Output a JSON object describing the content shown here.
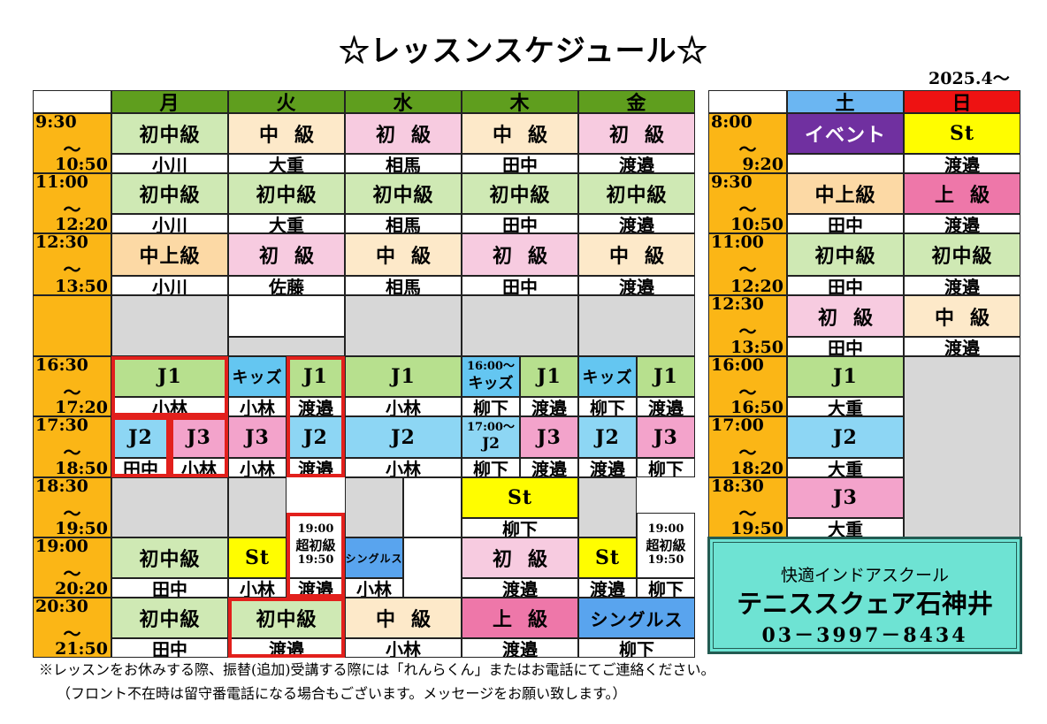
{
  "title": "☆レッスンスケジュール☆",
  "date": "2025.4～",
  "colors": {
    "time": "#fbb616",
    "weekday_header": "#5f9e1e",
    "sat_header": "#6bb6f2",
    "sun_header": "#ee1212",
    "beginner_mid": "#cfe9b4",
    "mid": "#fde9c9",
    "beginner": "#f7cbe0",
    "mid_upper": "#fcd9a5",
    "upper": "#ee77a9",
    "junior1": "#b7e08e",
    "kids": "#64c6f1",
    "junior2": "#8dd6f4",
    "junior3": "#f3a3cb",
    "st": "#fffd00",
    "singles": "#59a4ee",
    "event": "#7030a0",
    "gray": "#d7d7d7",
    "red_frame": "#e2201c",
    "contact_box": "#6ee3d3"
  },
  "days": [
    "月",
    "火",
    "水",
    "木",
    "金",
    "土",
    "日"
  ],
  "times": [
    {
      "start": "9:30",
      "tilde": "～",
      "end": "10:50"
    },
    {
      "start": "11:00",
      "tilde": "～",
      "end": "12:20"
    },
    {
      "start": "12:30",
      "tilde": "～",
      "end": "13:50"
    },
    {
      "start": "",
      "tilde": "",
      "end": ""
    },
    {
      "start": "16:30",
      "tilde": "～",
      "end": "17:20"
    },
    {
      "start": "17:30",
      "tilde": "～",
      "end": "18:50"
    },
    {
      "start": "18:30",
      "tilde": "～",
      "end": "19:50"
    },
    {
      "start": "19:00",
      "tilde": "～",
      "end": "20:20"
    },
    {
      "start": "20:30",
      "tilde": "～",
      "end": "21:50"
    }
  ],
  "weekend_times": [
    {
      "start": "8:00",
      "tilde": "～",
      "end": "9:20"
    },
    {
      "start": "9:30",
      "tilde": "～",
      "end": "10:50"
    },
    {
      "start": "11:00",
      "tilde": "～",
      "end": "12:20"
    },
    {
      "start": "12:30",
      "tilde": "～",
      "end": "13:50"
    },
    {
      "start": "16:00",
      "tilde": "～",
      "end": "16:50"
    },
    {
      "start": "17:00",
      "tilde": "～",
      "end": "18:20"
    },
    {
      "start": "18:30",
      "tilde": "～",
      "end": "19:50"
    }
  ],
  "weekday": [
    [
      {
        "lv": "初中級",
        "c": "beginner_mid",
        "n": "小川"
      },
      {
        "lv": "中級",
        "c": "mid",
        "n": "大重",
        "sp": 1
      },
      {
        "lv": "初級",
        "c": "beginner",
        "n": "相馬",
        "sp": 1
      },
      {
        "lv": "中級",
        "c": "mid",
        "n": "田中",
        "sp": 1
      },
      {
        "lv": "初級",
        "c": "beginner",
        "n": "渡邉",
        "sp": 1
      }
    ],
    [
      {
        "lv": "初中級",
        "c": "beginner_mid",
        "n": "小川"
      },
      {
        "lv": "初中級",
        "c": "beginner_mid",
        "n": "大重"
      },
      {
        "lv": "初中級",
        "c": "beginner_mid",
        "n": "相馬"
      },
      {
        "lv": "初中級",
        "c": "beginner_mid",
        "n": "田中"
      },
      {
        "lv": "初中級",
        "c": "beginner_mid",
        "n": "渡邉"
      }
    ],
    [
      {
        "lv": "中上級",
        "c": "mid_upper",
        "n": "小川"
      },
      {
        "lv": "初級",
        "c": "beginner",
        "n": "佐藤",
        "sp": 1
      },
      {
        "lv": "中級",
        "c": "mid",
        "n": "相馬",
        "sp": 1
      },
      {
        "lv": "初級",
        "c": "beginner",
        "n": "田中",
        "sp": 1
      },
      {
        "lv": "中級",
        "c": "mid",
        "n": "渡邉",
        "sp": 1
      }
    ]
  ],
  "junior": {
    "mon_j1": "J1",
    "mon_j1_n": "小林",
    "tue_kids": "キッズ",
    "tue_kids_n": "小林",
    "tue_j1": "J1",
    "tue_j1_n": "渡邉",
    "wed_j1": "J1",
    "wed_j1_n": "小林",
    "thu_kids_time": "16:00～",
    "thu_kids": "キッズ",
    "thu_kids_n": "柳下",
    "thu_j1": "J1",
    "thu_j1_n": "渡邉",
    "fri_kids": "キッズ",
    "fri_kids_n": "柳下",
    "fri_j1": "J1",
    "fri_j1_n": "渡邉",
    "mon_j2": "J2",
    "mon_j2_n": "田中",
    "mon_j3": "J3",
    "mon_j3_n": "小林",
    "tue_j3": "J3",
    "tue_j3_n": "小林",
    "tue_j2": "J2",
    "tue_j2_n": "渡邉",
    "wed_j2": "J2",
    "wed_j2_n": "小林",
    "thu_j2_time": "17:00～",
    "thu_j2": "J2",
    "thu_j2_n": "柳下",
    "thu_j3": "J3",
    "thu_j3_n": "渡邉",
    "fri_j2": "J2",
    "fri_j2_n": "渡邉",
    "fri_j3": "J3",
    "fri_j3_n": "柳下",
    "thu_st": "St",
    "thu_st_n": "柳下"
  },
  "evening": {
    "mon_1900": "初中級",
    "mon_1900_n": "田中",
    "tue_st": "St",
    "tue_st_n": "小林",
    "tue_special": [
      "19:00",
      "超初級",
      "19:50"
    ],
    "tue_special_n": "渡邉",
    "wed_singles": "シングルス",
    "wed_singles_n": "小林",
    "thu_1900": "初級",
    "thu_1900_n": "渡邉",
    "fri_st": "St",
    "fri_st_n": "渡邉",
    "fri_special": [
      "19:00",
      "超初級",
      "19:50"
    ],
    "fri_special_n": "柳下",
    "mon_2030": "初中級",
    "mon_2030_n": "田中",
    "tue_2030": "初中級",
    "tue_2030_n": "渡邉",
    "wed_2030": "中級",
    "wed_2030_n": "小林",
    "thu_2030": "上級",
    "thu_2030_n": "渡邉",
    "fri_2030": "シングルス",
    "fri_2030_n": "柳下"
  },
  "weekend": [
    {
      "sat": "イベント",
      "sat_c": "event",
      "sat_n": "",
      "sun": "St",
      "sun_c": "st",
      "sun_n": "渡邉"
    },
    {
      "sat": "中上級",
      "sat_c": "mid_upper",
      "sat_n": "田中",
      "sun": "上級",
      "sun_c": "upper",
      "sun_n": "渡邉"
    },
    {
      "sat": "初中級",
      "sat_c": "beginner_mid",
      "sat_n": "田中",
      "sun": "初中級",
      "sun_c": "beginner_mid",
      "sun_n": "渡邉"
    },
    {
      "sat": "初級",
      "sat_c": "beginner",
      "sat_n": "田中",
      "sun": "中級",
      "sun_c": "mid",
      "sun_n": "渡邉"
    },
    {
      "sat": "J1",
      "sat_c": "junior1",
      "sat_n": "大重"
    },
    {
      "sat": "J2",
      "sat_c": "junior2",
      "sat_n": "大重"
    },
    {
      "sat": "J3",
      "sat_c": "junior3",
      "sat_n": "大重"
    }
  ],
  "contact": {
    "line1": "快適インドアスクール",
    "line2": "テニススクェア石神井",
    "phone": "03－3997－8434"
  },
  "notes": {
    "line1": "※レッスンをお休みする際、振替(追加)受講する際には「れんらくん」またはお電話にてご連絡ください。",
    "line2": "（フロント不在時は留守番電話になる場合もございます。メッセージをお願い致します。）"
  }
}
